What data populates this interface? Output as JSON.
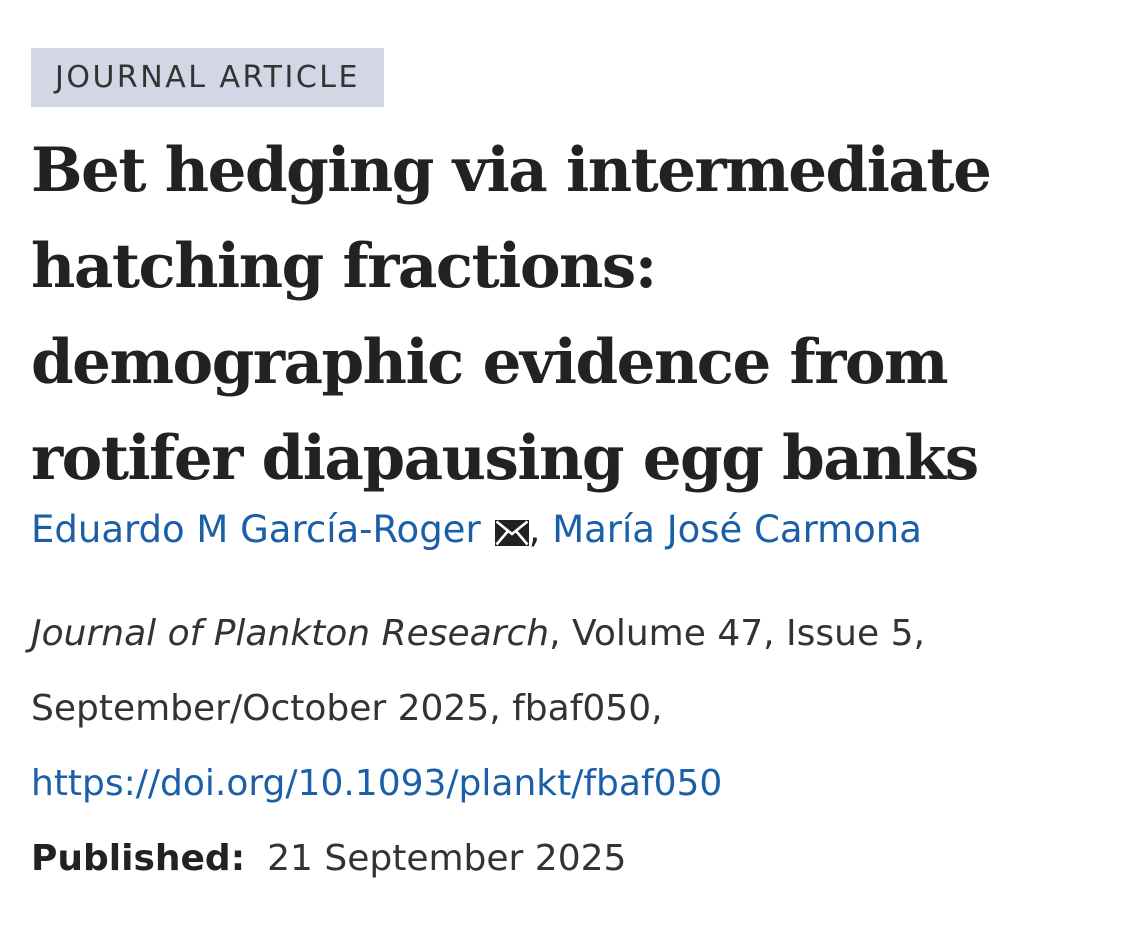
{
  "badge": {
    "label": "JOURNAL ARTICLE"
  },
  "article": {
    "title_lines": [
      "Bet hedging via intermediate",
      "hatching fractions:",
      "demographic evidence from",
      "rotifer diapausing egg banks"
    ],
    "authors": [
      {
        "name": "Eduardo M García-Roger",
        "icon": "mail-icon"
      },
      {
        "name": "María José Carmona"
      }
    ],
    "author_separator": ", "
  },
  "citation": {
    "journal": "Journal of Plankton Research",
    "volume_issue": ", Volume 47, Issue 5,",
    "date_id": "September/October 2025, fbaf050,",
    "doi": "https://doi.org/10.1093/plankt/fbaf050"
  },
  "published": {
    "label": "Published:",
    "date": "21 September 2025"
  },
  "colors": {
    "link": "#1a5fa8",
    "badge_bg": "#d2d6e5",
    "text": "#222222"
  }
}
